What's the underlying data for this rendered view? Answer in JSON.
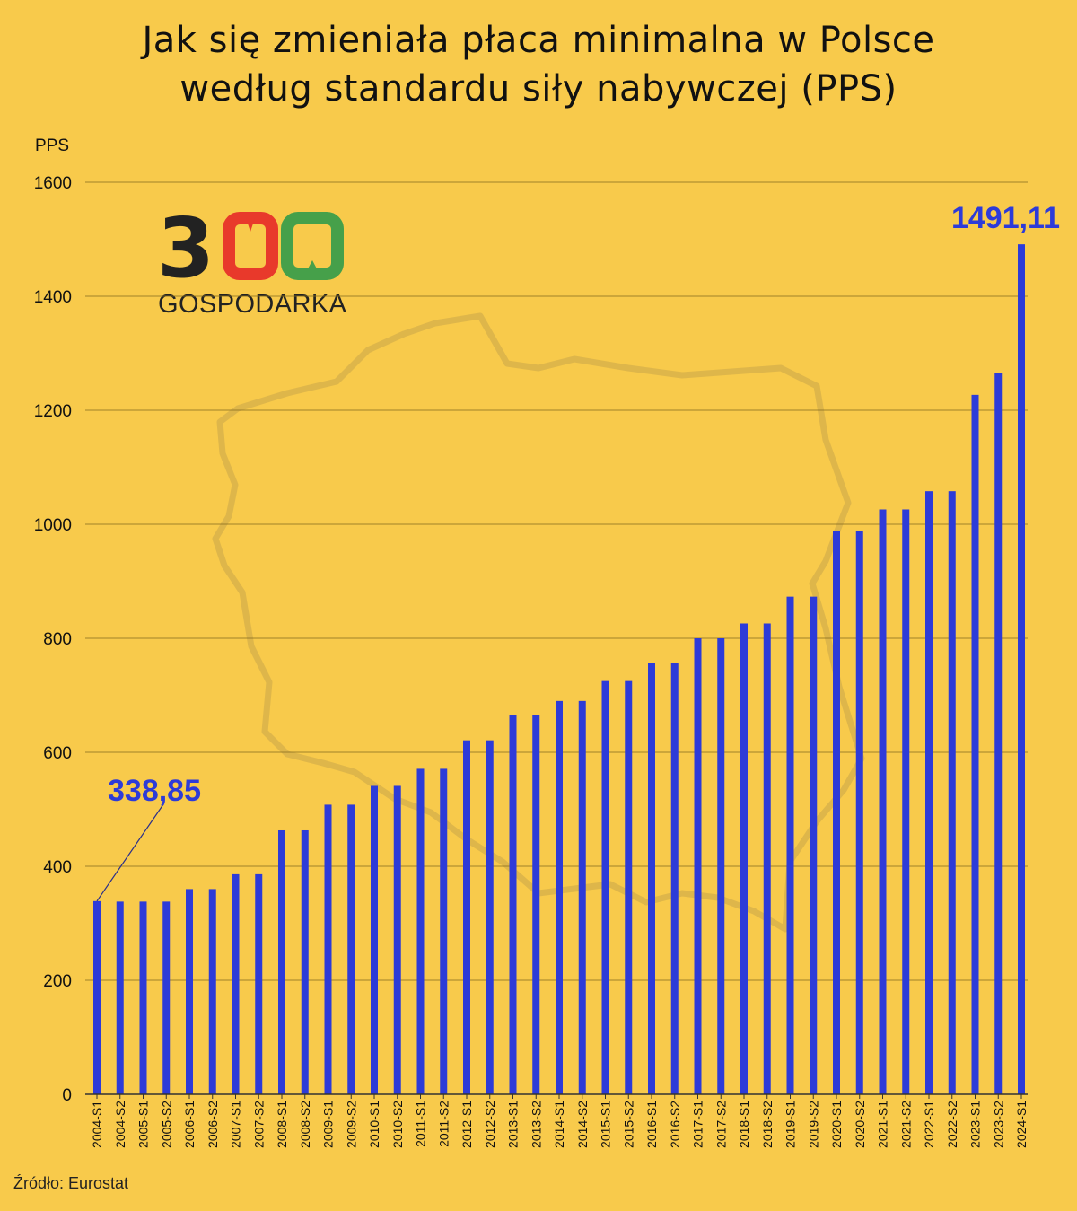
{
  "title_line1": "Jak się zmieniała płaca minimalna w Polsce",
  "title_line2": "według standardu siły nabywczej (PPS)",
  "source": "Źródło: Eurostat",
  "logo": {
    "digits": "300",
    "word": "GOSPODARKA"
  },
  "colors": {
    "background": "#f8ca4b",
    "bar": "#2d3bd8",
    "grid": "#8a6e1f",
    "logo_3": "#222222",
    "logo_0a": "#e8392b",
    "logo_0b": "#46a04a"
  },
  "chart_data": {
    "type": "bar",
    "ylabel": "PPS",
    "ylim": [
      0,
      1600
    ],
    "yticks": [
      0,
      200,
      400,
      600,
      800,
      1000,
      1200,
      1400,
      1600
    ],
    "grid": true,
    "categories": [
      "2004-S1",
      "2004-S2",
      "2005-S1",
      "2005-S2",
      "2006-S1",
      "2006-S2",
      "2007-S1",
      "2007-S2",
      "2008-S1",
      "2008-S2",
      "2009-S1",
      "2009-S2",
      "2010-S1",
      "2010-S2",
      "2011-S1",
      "2011-S2",
      "2012-S1",
      "2012-S2",
      "2013-S1",
      "2013-S2",
      "2014-S1",
      "2014-S2",
      "2015-S1",
      "2015-S2",
      "2016-S1",
      "2016-S2",
      "2017-S1",
      "2017-S2",
      "2018-S1",
      "2018-S2",
      "2019-S1",
      "2019-S2",
      "2020-S1",
      "2020-S2",
      "2021-S1",
      "2021-S2",
      "2022-S1",
      "2022-S2",
      "2023-S1",
      "2023-S2",
      "2024-S1"
    ],
    "values": [
      338.85,
      338,
      338,
      338,
      360,
      360,
      386,
      386,
      463,
      463,
      508,
      508,
      541,
      541,
      571,
      571,
      621,
      621,
      665,
      665,
      690,
      690,
      725,
      725,
      757,
      757,
      800,
      800,
      826,
      826,
      873,
      873,
      989,
      989,
      1026,
      1026,
      1058,
      1058,
      1227,
      1265,
      1491.11
    ],
    "annotations": [
      {
        "category": "2004-S1",
        "label": "338,85"
      },
      {
        "category": "2024-S1",
        "label": "1491,11"
      }
    ]
  }
}
